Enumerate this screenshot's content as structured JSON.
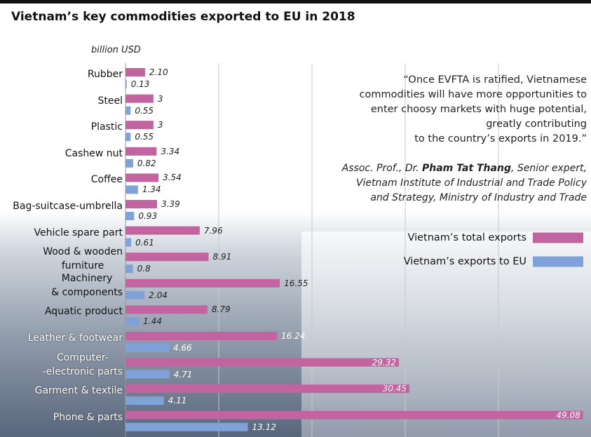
{
  "chart_data": {
    "type": "bar",
    "orientation": "horizontal",
    "title": "Vietnam’s key commodities exported to EU in 2018",
    "x_label": "billion USD",
    "categories": [
      "Rubber",
      "Steel",
      "Plastic",
      "Cashew nut",
      "Coffee",
      "Bag-suitcase-umbrella",
      "Vehicle spare part",
      "Wood & wooden\nfurniture",
      "Machinery\n& components",
      "Aquatic product",
      "Leather & footwear",
      "Computer-\n-electronic parts",
      "Garment & textile",
      "Phone & parts"
    ],
    "series": [
      {
        "name": "Vietnam’s total exports",
        "color": "#c2649f",
        "values": [
          2.1,
          3,
          3,
          3.34,
          3.54,
          3.39,
          7.96,
          8.91,
          16.55,
          8.79,
          16.24,
          29.32,
          30.45,
          49.08
        ],
        "value_labels": [
          "2.10",
          "3",
          "3",
          "3.34",
          "3.54",
          "3.39",
          "7.96",
          "8.91",
          "16.55",
          "8.79",
          "16.24",
          "29.32",
          "30.45",
          "49.08"
        ]
      },
      {
        "name": "Vietnam’s exports to EU",
        "color": "#7fa2d9",
        "values": [
          0.13,
          0.55,
          0.55,
          0.82,
          1.34,
          0.93,
          0.61,
          0.8,
          2.04,
          1.44,
          4.66,
          4.71,
          4.11,
          13.12
        ]
      }
    ],
    "xlim": [
      0,
      50
    ],
    "xticks": [
      10,
      20,
      30,
      40
    ],
    "grid": true,
    "quote": "“Once EVFTA is ratified, Vietnamese\ncommodities will have more opportunities to\nenter choosy markets with huge potential,\ngreatly contributing\nto the country’s exports in 2019.”",
    "attribution_prefix": "Assoc. Prof., Dr. ",
    "attribution_name": "Pham Tat Thang",
    "attribution_suffix": ", Senior expert,\nVietnam Institute of Industrial and Trade Policy\nand Strategy, Ministry of Industry and Trade"
  }
}
